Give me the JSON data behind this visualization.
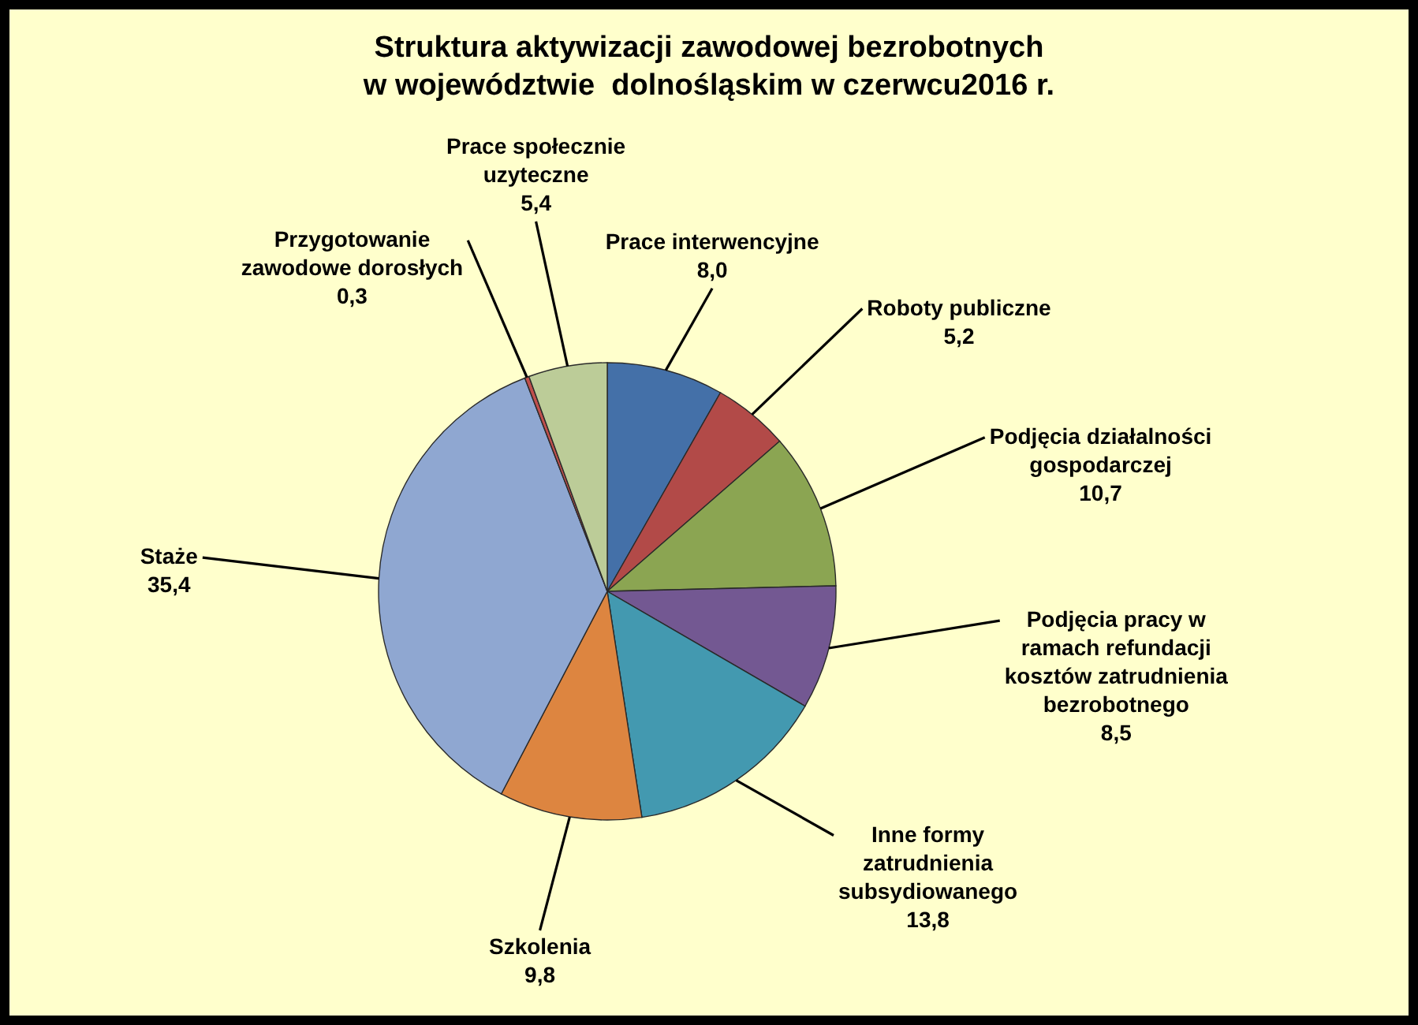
{
  "chart_data": {
    "type": "pie",
    "title": "Struktura aktywizacji zawodowej bezrobotnych\nw województwie  dolnośląskim w czerwcu2016 r.",
    "categories": [
      "Prace interwencyjne",
      "Roboty publiczne",
      "Podjęcia działalności gospodarczej",
      "Podjęcia pracy w ramach refundacji kosztów zatrudnienia bezrobotnego",
      "Inne formy zatrudnienia subsydiowanego",
      "Szkolenia",
      "Staże",
      "Przygotowanie zawodowe dorosłych",
      "Prace społecznie uzyteczne"
    ],
    "values": [
      8.0,
      5.2,
      10.7,
      8.5,
      13.8,
      9.8,
      35.4,
      0.3,
      5.4
    ],
    "value_labels": [
      "8,0",
      "5,2",
      "10,7",
      "8,5",
      "13,8",
      "9,8",
      "35,4",
      "0,3",
      "5,4"
    ],
    "colors": [
      "#4470a8",
      "#b24a48",
      "#8ba552",
      "#735892",
      "#4399b0",
      "#dd8540",
      "#8fa7d1",
      "#c0504d",
      "#bccc98"
    ]
  }
}
